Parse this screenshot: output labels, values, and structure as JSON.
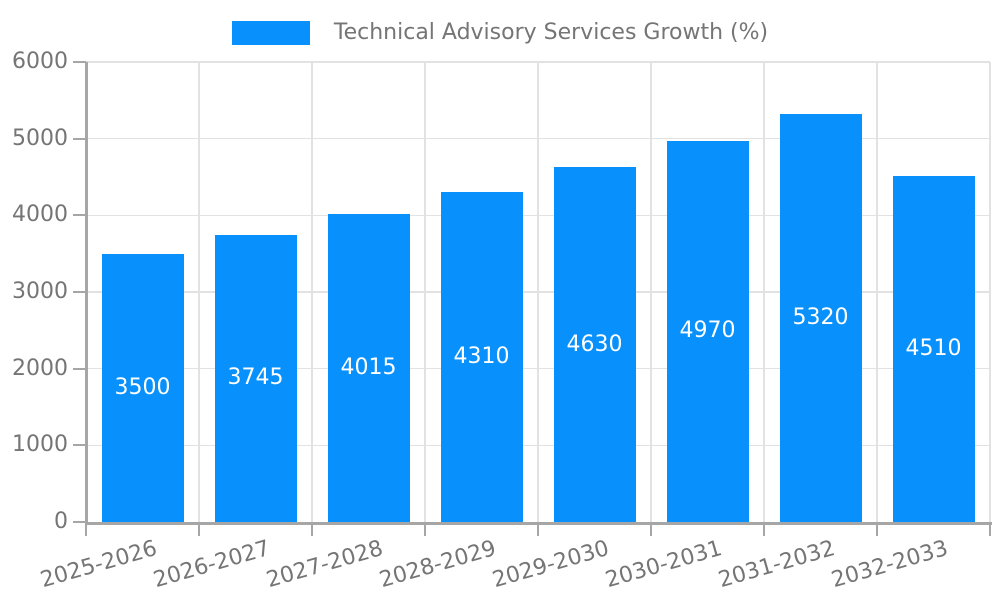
{
  "legend": {
    "series_label": "Technical Advisory Services Growth (%)"
  },
  "chart_data": {
    "type": "bar",
    "title": "Technical Advisory Services Growth (%)",
    "categories": [
      "2025-2026",
      "2026-2027",
      "2027-2028",
      "2028-2029",
      "2029-2030",
      "2030-2031",
      "2031-2032",
      "2032-2033"
    ],
    "series": [
      {
        "name": "Technical Advisory Services Growth (%)",
        "values": [
          3500,
          3745,
          4015,
          4310,
          4630,
          4970,
          5320,
          4510
        ]
      }
    ],
    "value_labels_shown": true,
    "xlabel": "",
    "ylabel": "",
    "ylim": [
      0,
      6000
    ],
    "yticks": [
      0,
      1000,
      2000,
      3000,
      4000,
      5000,
      6000
    ],
    "grid": true,
    "legend_position": "top-center",
    "x_tick_rotation_deg": 16,
    "colors": {
      "bar": "#0890fc",
      "value_label": "#ffffff",
      "axis": "#a6a6a6",
      "grid": "#e2e2e2",
      "tick_label": "#757575",
      "legend_text": "#757575",
      "background": "#ffffff"
    }
  }
}
